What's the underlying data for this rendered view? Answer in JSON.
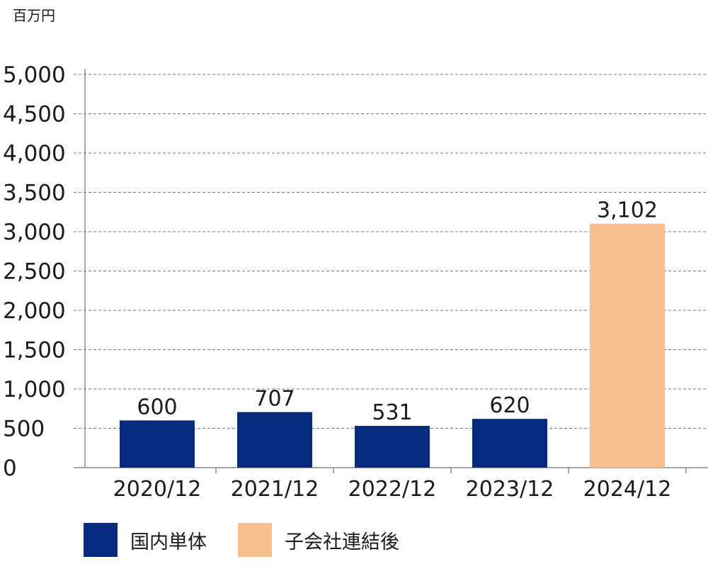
{
  "chart_data": {
    "type": "bar",
    "unit_label": "百万円",
    "categories": [
      "2020/12",
      "2021/12",
      "2022/12",
      "2023/12",
      "2024/12"
    ],
    "values": [
      600,
      707,
      531,
      620,
      3102
    ],
    "value_labels": [
      "600",
      "707",
      "531",
      "620",
      "3,102"
    ],
    "bar_colors": [
      "#062a7c",
      "#062a7c",
      "#062a7c",
      "#062a7c",
      "#f7bf8f"
    ],
    "ylim": [
      0,
      5000
    ],
    "yticks": [
      0,
      500,
      1000,
      1500,
      2000,
      2500,
      3000,
      3500,
      4000,
      4500,
      5000
    ],
    "ytick_labels": [
      "0",
      "500",
      "1,000",
      "1,500",
      "2,000",
      "2,500",
      "3,000",
      "3,500",
      "4,000",
      "4,500",
      "5,000"
    ],
    "grid": "horizontal dashed",
    "legend_position": "bottom",
    "legend": [
      {
        "label": "国内単体",
        "color": "#062a7c"
      },
      {
        "label": "子会社連結後",
        "color": "#f7bf8f"
      }
    ]
  }
}
